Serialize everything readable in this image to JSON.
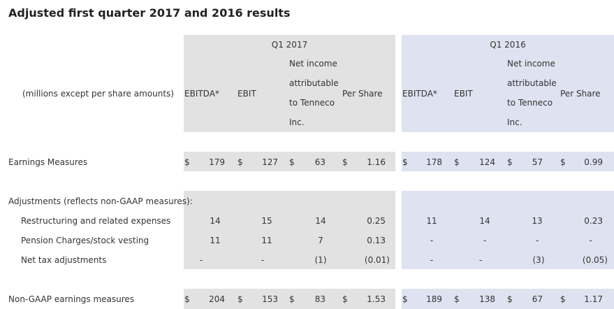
{
  "title": "Adjusted first quarter 2017 and 2016 results",
  "units_label": "(millions except per share amounts)",
  "periods": [
    "Q1 2017",
    "Q1 2016"
  ],
  "columns": [
    "EBITDA*",
    "EBIT",
    [
      "Net income",
      "attributable",
      "to Tenneco",
      "Inc."
    ],
    "Per Share"
  ],
  "currency": "$",
  "rows": {
    "earnings": {
      "label": "Earnings Measures",
      "q1_2017": [
        "179",
        "127",
        "63",
        "1.16"
      ],
      "q1_2016": [
        "178",
        "124",
        "57",
        "0.99"
      ]
    },
    "adjustments_header": "Adjustments (reflects non-GAAP measures):",
    "adjustments": [
      {
        "label": "Restructuring and related expenses",
        "q1_2017": [
          "14",
          "15",
          "14",
          "0.25"
        ],
        "q1_2016": [
          "11",
          "14",
          "13",
          "0.23"
        ]
      },
      {
        "label": "Pension Charges/stock vesting",
        "q1_2017": [
          "11",
          "11",
          "7",
          "0.13"
        ],
        "q1_2016": [
          "-",
          "-",
          "-",
          "-"
        ]
      },
      {
        "label": "Net tax adjustments",
        "q1_2017": [
          "-",
          "-",
          "(1)",
          "(0.01)"
        ],
        "q1_2016": [
          "-",
          "-",
          "(3)",
          "(0.05)"
        ]
      }
    ],
    "non_gaap": {
      "label": "Non-GAAP earnings measures",
      "q1_2017": [
        "204",
        "153",
        "83",
        "1.53"
      ],
      "q1_2016": [
        "189",
        "138",
        "67",
        "1.17"
      ]
    }
  },
  "colors": {
    "q1_2017_band": "#e2e2e2",
    "q1_2016_band": "#dfe2f0"
  }
}
